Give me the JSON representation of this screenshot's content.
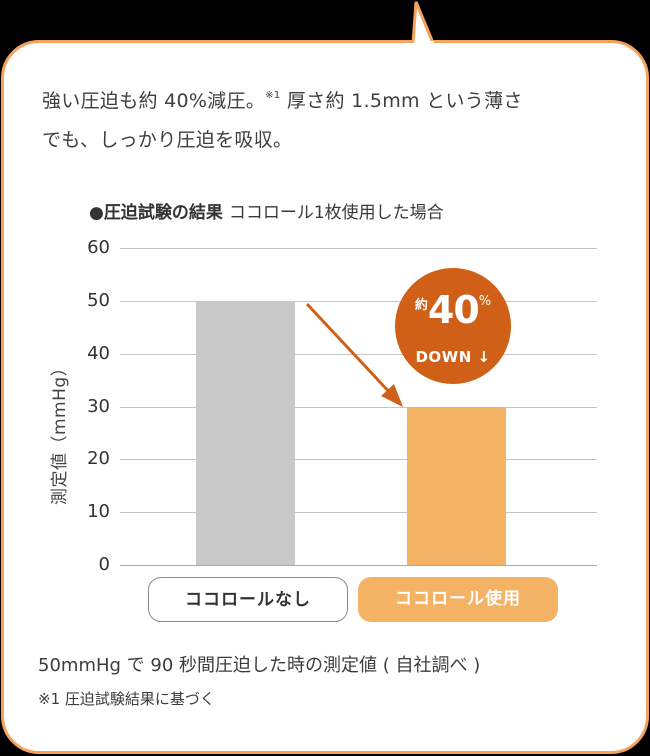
{
  "intro": {
    "line1_a": "強い圧迫も約 40%減圧。",
    "line1_sup": "※1",
    "line1_b": " 厚さ約 1.5mm という薄さ",
    "line2": "でも、しっかり圧迫を吸収。"
  },
  "chart_title": {
    "bold": "●圧迫試験の結果",
    "sub": "ココロール1枚使用した場合"
  },
  "badge": {
    "prefix": "約",
    "value": "40",
    "unit": "%",
    "label": "DOWN ↓"
  },
  "categories": {
    "without": "ココロールなし",
    "with": "ココロール使用"
  },
  "notes": {
    "method": "50mmHg で 90 秒間圧迫した時の測定値 ( 自社調べ )",
    "footnote": "※1 圧迫試験結果に基づく"
  },
  "colors": {
    "border": "#f5a35c",
    "bar_without": "#c8c9c8",
    "bar_with": "#f4b264",
    "badge": "#d06018",
    "arrow": "#d06018"
  },
  "chart_data": {
    "type": "bar",
    "title": "●圧迫試験の結果 ココロール1枚使用した場合",
    "categories": [
      "ココロールなし",
      "ココロール使用"
    ],
    "values": [
      50,
      30
    ],
    "xlabel": "",
    "ylabel": "測定値（mmHg）",
    "ylim": [
      0,
      60
    ],
    "yticks": [
      0,
      10,
      20,
      30,
      40,
      50,
      60
    ],
    "grid": true,
    "legend": null,
    "annotations": [
      "約40% DOWN ↓"
    ]
  }
}
